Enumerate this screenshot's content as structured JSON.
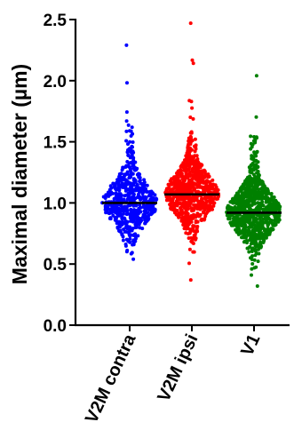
{
  "chart_data": {
    "type": "scatter",
    "subtype": "beeswarm",
    "title": "",
    "xlabel": "",
    "ylabel": "Maximal diameter (µm)",
    "ylim": [
      0.0,
      2.5
    ],
    "yticks": [
      "0.0",
      "0.5",
      "1.0",
      "1.5",
      "2.0",
      "2.5"
    ],
    "grid": false,
    "legend": "none",
    "categories": [
      "V2M contra",
      "V2M ipsi",
      "V1"
    ],
    "series": [
      {
        "category": "V2M contra",
        "color": "#0000ff",
        "median": 1.0,
        "min": 0.54,
        "max": 2.29,
        "n": 600
      },
      {
        "category": "V2M ipsi",
        "color": "#ff0000",
        "median": 1.07,
        "min": 0.37,
        "max": 2.47,
        "n": 800
      },
      {
        "category": "V1",
        "color": "#008000",
        "median": 0.92,
        "min": 0.32,
        "max": 2.04,
        "n": 900
      }
    ],
    "median_line_color": "#000000"
  }
}
